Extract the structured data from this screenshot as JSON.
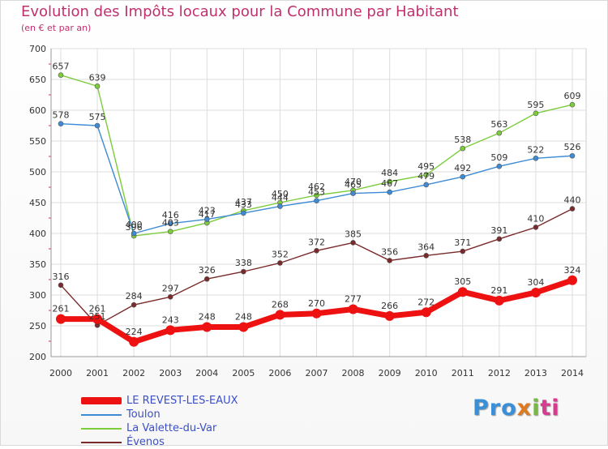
{
  "title": "Evolution des Impôts locaux pour la Commune par Habitant",
  "subtitle": "(en € et par an)",
  "logo": {
    "p1": "Pro",
    "p2": "x",
    "p3": "i",
    "p4": "ti"
  },
  "chart_data": {
    "type": "line",
    "categories": [
      "2000",
      "2001",
      "2002",
      "2003",
      "2004",
      "2005",
      "2006",
      "2007",
      "2008",
      "2009",
      "2010",
      "2011",
      "2012",
      "2013",
      "2014"
    ],
    "ylim": [
      200,
      700
    ],
    "yticks": [
      200,
      250,
      300,
      350,
      400,
      450,
      500,
      550,
      600,
      650,
      700
    ],
    "grid": true,
    "legend_position": "bottom-left",
    "series": [
      {
        "name": "Évenos",
        "color": "#7a2a2a",
        "values": [
          316,
          251,
          284,
          297,
          326,
          338,
          352,
          372,
          385,
          356,
          364,
          371,
          391,
          410,
          440
        ]
      },
      {
        "name": "La Valette-du-Var",
        "color": "#7ccc3c",
        "values": [
          657,
          639,
          396,
          403,
          417,
          437,
          450,
          462,
          470,
          484,
          495,
          538,
          563,
          595,
          609
        ]
      },
      {
        "name": "Toulon",
        "color": "#3d8bd4",
        "values": [
          578,
          575,
          400,
          416,
          423,
          433,
          444,
          453,
          465,
          467,
          479,
          492,
          509,
          522,
          526
        ]
      },
      {
        "name": "LE REVEST-LES-EAUX",
        "color": "#ee1111",
        "values": [
          261,
          261,
          224,
          243,
          248,
          248,
          268,
          270,
          277,
          266,
          272,
          305,
          291,
          304,
          324
        ]
      }
    ],
    "legend_order": [
      "LE REVEST-LES-EAUX",
      "Toulon",
      "La Valette-du-Var",
      "Évenos"
    ]
  }
}
